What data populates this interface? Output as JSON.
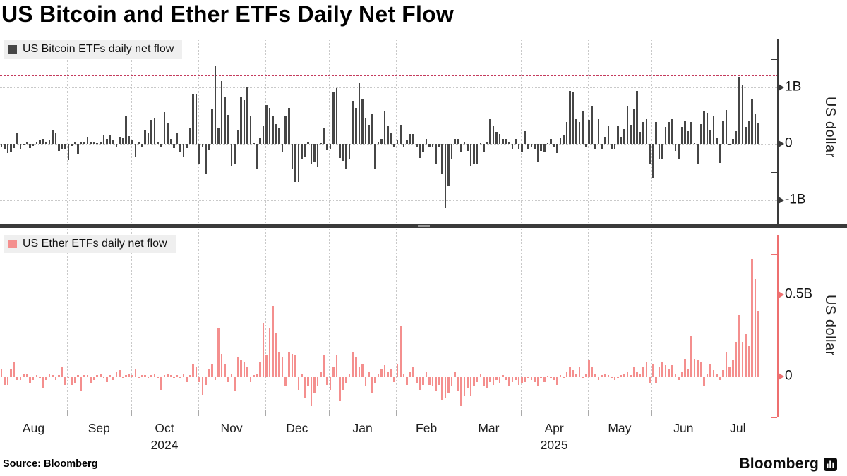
{
  "title": "US Bitcoin and Ether ETFs Daily Net Flow",
  "source_label": "Source: Bloomberg",
  "brand": {
    "name": "Bloomberg"
  },
  "colors": {
    "background": "#ffffff",
    "grid": "#c9c9c9",
    "bitcoin_bar": "#464646",
    "ether_bar": "#f48f8e",
    "bitcoin_axis": "#3a3a3a",
    "ether_axis": "#ee6f6f",
    "ref_line_top": "#c43b5d",
    "ref_line_bottom": "#ce3a3a",
    "divider": "#3a3a3a",
    "legend_background": "#efefef"
  },
  "x_axis": {
    "months": [
      "Aug",
      "Sep",
      "Oct",
      "Nov",
      "Dec",
      "Jan",
      "Feb",
      "Mar",
      "Apr",
      "May",
      "Jun",
      "Jul"
    ],
    "year_labels": [
      {
        "text": "2024",
        "month_index": 2
      },
      {
        "text": "2025",
        "month_index": 8
      }
    ]
  },
  "chart_data": [
    {
      "type": "bar",
      "name": "US Bitcoin ETFs daily net flow",
      "ylabel": "US dollar",
      "unit": "billions of US dollars",
      "bar_color": "#464646",
      "axis_color": "#3a3a3a",
      "ylim": [
        -1.43,
        1.86
      ],
      "yticks": [
        {
          "v": 1,
          "label": "1B"
        },
        {
          "v": 0,
          "label": "0"
        },
        {
          "v": -1,
          "label": "-1B"
        }
      ],
      "minor_ticks": [
        1.5,
        0.5,
        -0.5
      ],
      "ref_line": {
        "value": 1.21,
        "color": "#c43b5d"
      },
      "grid": true,
      "legend_position": "top-left",
      "monthly_counts": [
        21,
        20,
        21,
        21,
        20,
        21,
        19,
        20,
        21,
        20,
        20,
        14
      ],
      "values": [
        -0.07,
        -0.09,
        -0.17,
        -0.15,
        -0.08,
        0.19,
        -0.09,
        -0.02,
        0.04,
        -0.08,
        -0.04,
        0.04,
        0.06,
        0.09,
        0.04,
        0.07,
        0.25,
        0.2,
        -0.13,
        -0.11,
        -0.09,
        -0.29,
        -0.04,
        0.03,
        -0.19,
        0.03,
        0.03,
        0.12,
        0.04,
        0.04,
        0.01,
        0.03,
        0.16,
        0.09,
        0.16,
        0.06,
        -0.05,
        0.12,
        0.11,
        0.49,
        0.13,
        0.06,
        -0.24,
        0.03,
        -0.06,
        0.24,
        0.19,
        0.42,
        0.46,
        0.02,
        -0.05,
        0.56,
        0.37,
        0.08,
        -0.08,
        0.19,
        -0.14,
        -0.23,
        -0.08,
        0.27,
        0.87,
        0.89,
        -0.36,
        -0.05,
        -0.54,
        -0.12,
        0.62,
        1.37,
        0.29,
        1.11,
        0.82,
        0.51,
        -0.4,
        -0.37,
        0.25,
        0.82,
        0.77,
        1.0,
        0.49,
        0.0,
        -0.44,
        0.1,
        0.32,
        0.68,
        0.63,
        0.48,
        0.35,
        0.28,
        -0.15,
        0.48,
        0.64,
        -0.45,
        -0.68,
        -0.68,
        -0.28,
        -0.23,
        0.03,
        -0.36,
        -0.33,
        -0.42,
        0.01,
        0.28,
        -0.12,
        -0.1,
        0.91,
        0.99,
        -0.25,
        -0.32,
        -0.44,
        -0.28,
        0.76,
        0.63,
        1.08,
        0.8,
        0.46,
        0.34,
        0.52,
        -0.46,
        0.02,
        0.09,
        0.59,
        0.32,
        0.18,
        -0.06,
        0.07,
        0.34,
        -0.06,
        0.07,
        0.17,
        0.17,
        -0.06,
        -0.25,
        -0.16,
        0.09,
        -0.06,
        -0.07,
        -0.36,
        -0.06,
        -0.54,
        -1.14,
        -0.75,
        -0.28,
        0.09,
        0.09,
        -0.14,
        0.02,
        -0.13,
        -0.41,
        -0.37,
        -0.37,
        0.01,
        -0.14,
        0.04,
        0.43,
        0.32,
        0.21,
        0.17,
        0.08,
        0.08,
        0.03,
        -0.09,
        0.09,
        -0.09,
        -0.16,
        0.22,
        -0.1,
        -0.07,
        -0.1,
        -0.33,
        -0.13,
        -0.15,
        0.0,
        0.08,
        -0.06,
        -0.17,
        0.11,
        0.15,
        0.38,
        0.93,
        0.92,
        0.44,
        0.38,
        0.59,
        -0.06,
        0.42,
        0.67,
        -0.09,
        0.43,
        -0.09,
        0.12,
        0.32,
        -0.09,
        -0.1,
        0.32,
        0.12,
        0.26,
        0.67,
        0.33,
        0.61,
        0.93,
        0.21,
        0.39,
        0.43,
        -0.35,
        -0.62,
        0.38,
        -0.28,
        -0.28,
        0.3,
        0.39,
        0.43,
        -0.13,
        -0.28,
        0.3,
        0.41,
        0.22,
        0.39,
        0.01,
        -0.35,
        0.35,
        0.59,
        0.55,
        0.23,
        0.5,
        0.1,
        -0.34,
        0.41,
        0.6,
        -0.02,
        0.08,
        0.22,
        1.18,
        1.03,
        0.3,
        0.4,
        0.8,
        0.52,
        0.36
      ]
    },
    {
      "type": "bar",
      "name": "US Ether ETFs daily net flow",
      "ylabel": "US dollar",
      "unit": "billions of US dollars",
      "bar_color": "#f48f8e",
      "axis_color": "#ee6f6f",
      "ylim": [
        -0.27,
        0.9
      ],
      "yticks": [
        {
          "v": 0.5,
          "label": "0.5B"
        },
        {
          "v": 0,
          "label": "0"
        }
      ],
      "minor_ticks": [
        0.75,
        0.25,
        -0.25
      ],
      "ref_line": {
        "value": 0.38,
        "color": "#ce3a3a"
      },
      "grid": true,
      "legend_position": "top-left",
      "monthly_counts": [
        21,
        20,
        21,
        21,
        20,
        21,
        19,
        20,
        21,
        20,
        20,
        14
      ],
      "values": [
        0.05,
        -0.05,
        -0.05,
        0.05,
        0.09,
        -0.02,
        -0.02,
        0.02,
        0.02,
        -0.04,
        -0.02,
        0.01,
        -0.01,
        -0.07,
        -0.02,
        0.02,
        0.01,
        -0.02,
        0.01,
        0.06,
        -0.05,
        -0.01,
        -0.05,
        -0.04,
        0.01,
        -0.09,
        0.01,
        0.01,
        -0.04,
        -0.02,
        0.01,
        0.02,
        -0.01,
        -0.03,
        0.01,
        -0.02,
        0.03,
        0.04,
        -0.01,
        0.01,
        0.02,
        0.01,
        0.05,
        -0.01,
        0.01,
        0.01,
        -0.01,
        0.01,
        0.02,
        -0.01,
        -0.08,
        0.01,
        0.02,
        0.01,
        -0.01,
        0.01,
        -0.01,
        0.02,
        -0.03,
        0.01,
        0.08,
        0.06,
        -0.03,
        -0.11,
        -0.05,
        0.05,
        0.08,
        -0.02,
        0.3,
        0.14,
        0.08,
        -0.03,
        0.02,
        -0.09,
        0.12,
        0.1,
        0.09,
        0.06,
        -0.03,
        0.01,
        0.02,
        0.09,
        0.33,
        0.13,
        0.3,
        0.43,
        0.27,
        0.15,
        0.12,
        -0.06,
        0.15,
        0.14,
        0.13,
        -0.08,
        0.02,
        -0.13,
        -0.06,
        -0.18,
        -0.1,
        -0.06,
        0.03,
        0.13,
        -0.05,
        -0.08,
        0.06,
        0.13,
        -0.15,
        -0.08,
        -0.04,
        0.02,
        0.15,
        0.12,
        0.06,
        0.08,
        -0.06,
        0.03,
        -0.1,
        -0.04,
        0.02,
        0.05,
        0.07,
        0.03,
        0.05,
        -0.03,
        0.08,
        0.31,
        0.02,
        -0.05,
        0.03,
        0.06,
        -0.04,
        -0.08,
        -0.05,
        0.03,
        -0.05,
        -0.06,
        -0.09,
        -0.05,
        -0.14,
        -0.13,
        -0.1,
        -0.06,
        0.03,
        -0.09,
        -0.18,
        -0.12,
        -0.07,
        -0.12,
        -0.06,
        -0.03,
        0.02,
        -0.06,
        -0.07,
        -0.03,
        -0.05,
        -0.02,
        -0.04,
        0.01,
        -0.02,
        -0.06,
        -0.03,
        -0.02,
        -0.05,
        -0.04,
        -0.03,
        -0.01,
        -0.02,
        -0.03,
        -0.06,
        -0.01,
        -0.03,
        0.0,
        -0.01,
        -0.02,
        -0.05,
        0.01,
        -0.01,
        0.03,
        0.06,
        0.04,
        0.02,
        0.06,
        -0.01,
        0.02,
        0.1,
        0.06,
        0.02,
        -0.02,
        0.01,
        0.02,
        0.01,
        -0.01,
        -0.02,
        -0.01,
        0.01,
        0.02,
        0.03,
        0.01,
        0.06,
        0.03,
        0.02,
        0.06,
        0.09,
        -0.04,
        0.08,
        -0.04,
        0.06,
        0.09,
        0.07,
        0.05,
        0.07,
        0.02,
        -0.02,
        0.03,
        0.11,
        0.05,
        0.25,
        0.11,
        0.1,
        0.09,
        -0.06,
        0.02,
        0.08,
        0.04,
        0.02,
        -0.02,
        0.04,
        0.15,
        0.06,
        0.1,
        0.21,
        0.38,
        0.21,
        0.26,
        0.19,
        0.72,
        0.6,
        0.4
      ]
    }
  ]
}
